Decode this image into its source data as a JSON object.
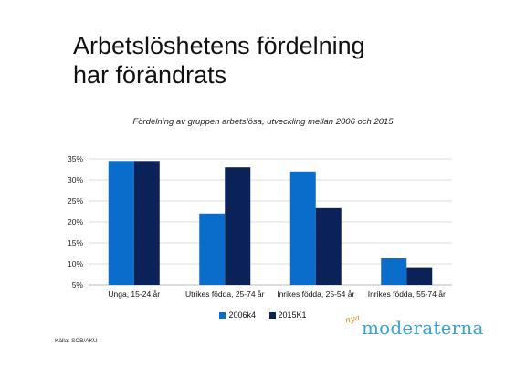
{
  "slide": {
    "title_line1": "Arbetslöshetens fördelning",
    "title_line2": "har förändrats",
    "source": "Källa: SCB/AKU",
    "logo": {
      "prefix": "nya",
      "word": "moderaterna"
    }
  },
  "colors": {
    "series1": "#0a6ccb",
    "series2": "#0b2258",
    "grid": "#dedede",
    "axis": "#bdbdbd"
  },
  "chart_data": {
    "type": "bar",
    "title": "Fördelning av gruppen arbetslösa, utveckling mellan 2006 och 2015",
    "xlabel": "",
    "ylabel": "",
    "categories": [
      "Unga, 15-24 år",
      "Utrikes födda, 25-74 år",
      "Inrikes födda, 25-54 år",
      "Inrikes födda, 55-74 år"
    ],
    "series": [
      {
        "name": "2006k4",
        "values": [
          34.5,
          22,
          32,
          11.3
        ]
      },
      {
        "name": "2015K1",
        "values": [
          34.5,
          33,
          23.3,
          9
        ]
      }
    ],
    "ylim": [
      5,
      35
    ],
    "yticks": [
      5,
      10,
      15,
      20,
      25,
      30,
      35
    ],
    "ytick_labels": [
      "5%",
      "10%",
      "15%",
      "20%",
      "25%",
      "30%",
      "35%"
    ],
    "grid": true,
    "legend_position": "bottom"
  }
}
